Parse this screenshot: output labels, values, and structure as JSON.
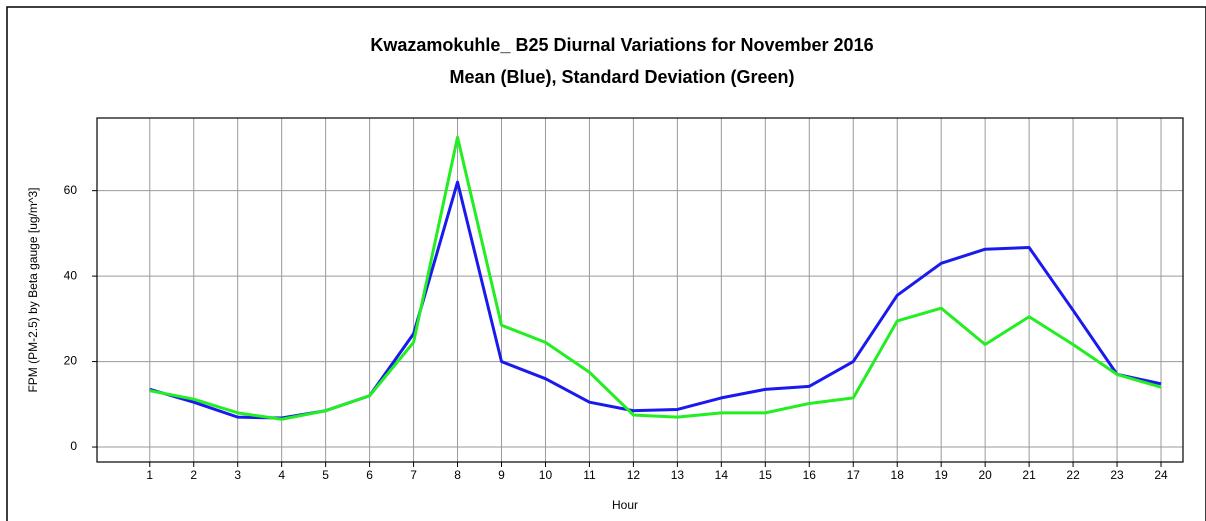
{
  "chart_data": {
    "type": "line",
    "title": "Kwazamokuhle_ B25 Diurnal Variations for November 2016",
    "subtitle": "Mean (Blue), Standard Deviation (Green)",
    "x_label": "Hour",
    "y_label": "FPM (PM-2.5) by Beta gauge  [ug/m^3]",
    "x": [
      1,
      2,
      3,
      4,
      5,
      6,
      7,
      8,
      9,
      10,
      11,
      12,
      13,
      14,
      15,
      16,
      17,
      18,
      19,
      20,
      21,
      22,
      23,
      24
    ],
    "series": [
      {
        "color": "#1a1aee",
        "values": [
          13.5,
          10.5,
          7,
          6.8,
          8.5,
          12,
          26.5,
          62,
          20,
          16,
          10.5,
          8.5,
          8.8,
          11.5,
          13.5,
          14.2,
          20,
          35.5,
          43,
          46.3,
          46.7,
          32,
          17,
          14.8
        ]
      },
      {
        "color": "#22ee22",
        "values": [
          13.2,
          11.2,
          8,
          6.5,
          8.5,
          12,
          24.5,
          72.5,
          28.5,
          24.5,
          17.5,
          7.5,
          7,
          8,
          8,
          10.2,
          11.5,
          29.5,
          32.5,
          24,
          30.5,
          24,
          17,
          14
        ]
      }
    ],
    "xlim": [
      -0.2,
      24.5
    ],
    "xticks": [
      1,
      2,
      3,
      4,
      5,
      6,
      7,
      8,
      9,
      10,
      11,
      12,
      13,
      14,
      15,
      16,
      17,
      18,
      19,
      20,
      21,
      22,
      23,
      24
    ],
    "ylim": [
      -3.5,
      77
    ],
    "yticks": [
      0,
      20,
      40,
      60
    ],
    "grid": true
  }
}
